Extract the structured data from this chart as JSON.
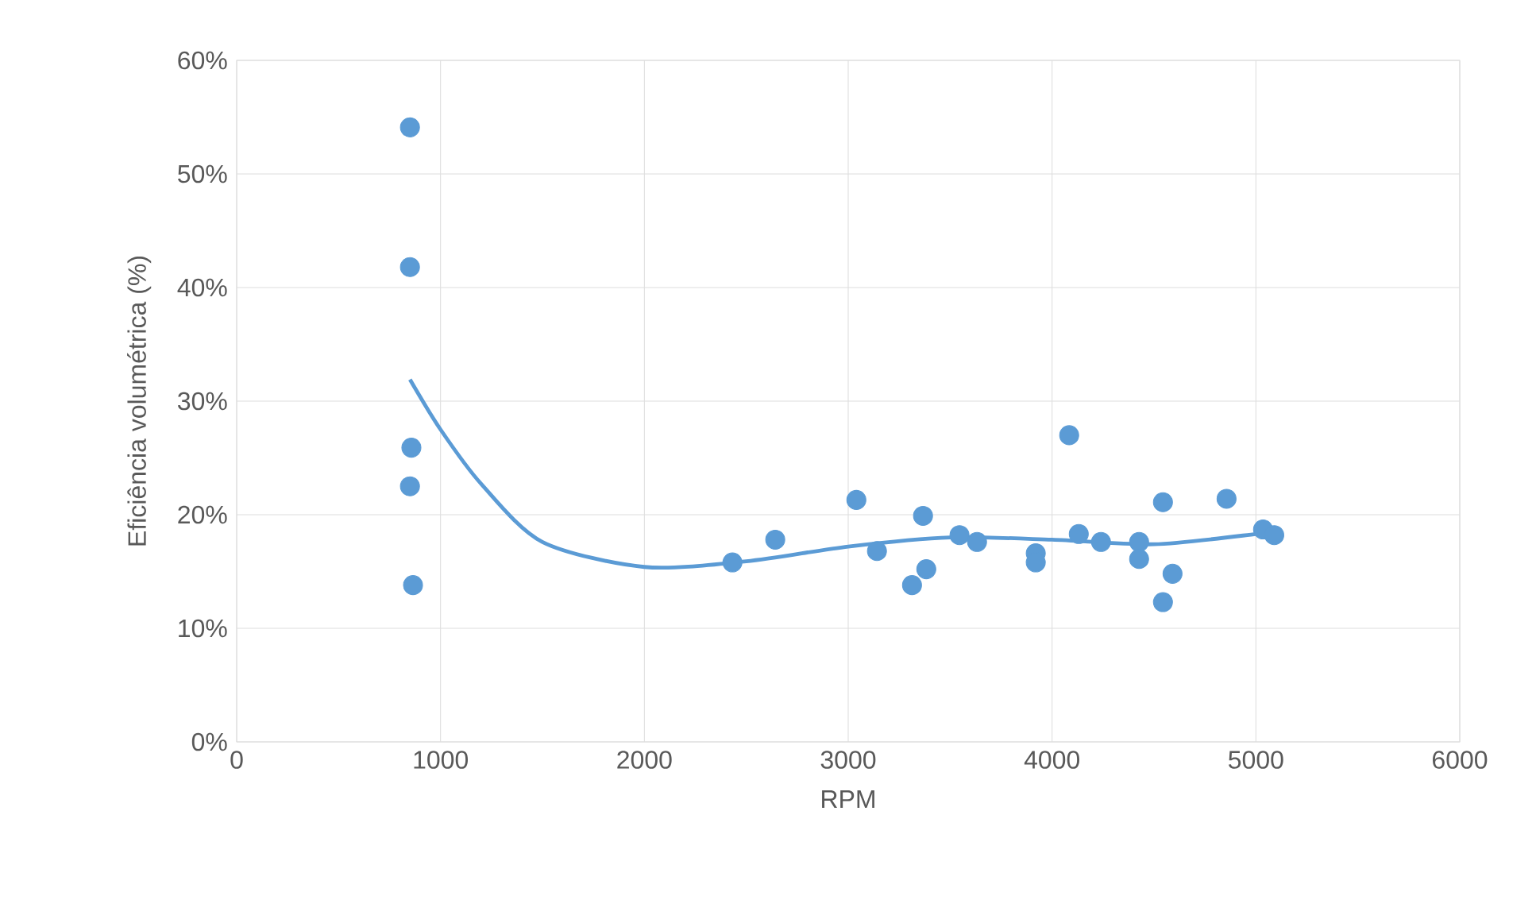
{
  "chart_data": {
    "type": "scatter",
    "xlabel": "RPM",
    "ylabel": "Eficiência volumétrica (%)",
    "xlim": [
      0,
      6000
    ],
    "xticks": [
      0,
      1000,
      2000,
      3000,
      4000,
      5000,
      6000
    ],
    "ylim": [
      0,
      60
    ],
    "yticks": [
      {
        "value": 0,
        "label": "0%"
      },
      {
        "value": 10,
        "label": "10%"
      },
      {
        "value": 20,
        "label": "20%"
      },
      {
        "value": 30,
        "label": "30%"
      },
      {
        "value": 40,
        "label": "40%"
      },
      {
        "value": 50,
        "label": "50%"
      },
      {
        "value": 60,
        "label": "60%"
      }
    ],
    "grid": true,
    "marker": "circle",
    "series": [
      {
        "color": "#5b9bd5",
        "x": [
          850,
          850,
          857,
          850,
          865,
          2432,
          2642,
          3040,
          3141,
          3313,
          3367,
          3383,
          3546,
          3632,
          3920,
          3920,
          4084,
          4131,
          4240,
          4427,
          4427,
          4544,
          4544,
          4591,
          4856,
          5035,
          5090
        ],
        "values": [
          54.1,
          41.8,
          25.9,
          22.5,
          13.8,
          15.8,
          17.8,
          21.3,
          16.8,
          13.8,
          19.9,
          15.2,
          18.2,
          17.6,
          16.6,
          15.8,
          27.0,
          18.3,
          17.6,
          17.6,
          16.1,
          21.1,
          12.3,
          14.8,
          21.4,
          18.7,
          18.2
        ]
      },
      {
        "type": "line",
        "color": "#5b9bd5",
        "marker": "none",
        "x": [
          850,
          1000,
          1200,
          1500,
          2000,
          2500,
          3000,
          3500,
          4000,
          4500,
          5000,
          5090
        ],
        "values": [
          31.9,
          27.5,
          22.7,
          17.6,
          15.4,
          15.9,
          17.2,
          18.0,
          17.8,
          17.4,
          18.3,
          18.6
        ]
      }
    ]
  }
}
